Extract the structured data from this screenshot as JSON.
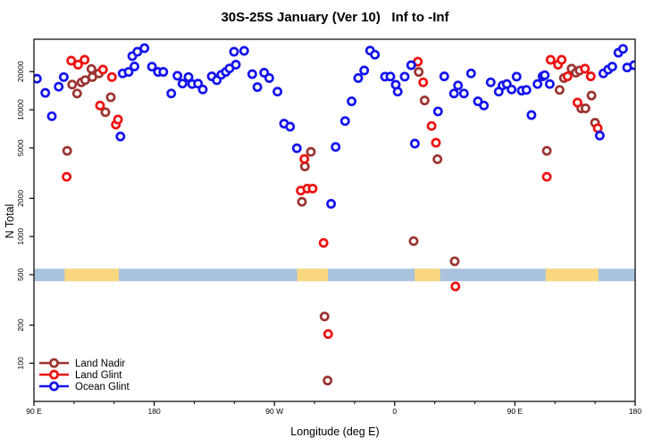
{
  "title": "30S-25S January (Ver 10)   Inf to -Inf",
  "chart_data": {
    "type": "scatter",
    "title": "30S-25S January (Ver 10)   Inf to -Inf",
    "xlabel": "Longitude (deg E)",
    "ylabel": "N Total",
    "y_scale": "log",
    "grid": false,
    "xlim": [
      90,
      540
    ],
    "ylim": [
      50,
      36000
    ],
    "x_axis": {
      "major_ticks": [
        {
          "deg": 90,
          "label": "90 E"
        },
        {
          "deg": 180,
          "label": "180"
        },
        {
          "deg": 270,
          "label": "90 W"
        },
        {
          "deg": 360,
          "label": "0"
        },
        {
          "deg": 450,
          "label": "90 E"
        },
        {
          "deg": 540,
          "label": "180"
        }
      ],
      "minor_ticks_deg": [
        120,
        150,
        210,
        240,
        300,
        330,
        390,
        420,
        480,
        510
      ]
    },
    "y_axis": {
      "ticks": [
        100,
        200,
        500,
        1000,
        2000,
        5000,
        10000,
        20000
      ],
      "tick_labels": [
        "100",
        "200",
        "500",
        "1000",
        "2000",
        "5000",
        "10000",
        "20000"
      ]
    },
    "band": {
      "n_center": 500,
      "n_range": [
        444,
        557
      ],
      "ocean_color": "#A9C2DE",
      "land_color": "#FBD87F",
      "land_segments_deg": [
        [
          113,
          153.5
        ],
        [
          287,
          310
        ],
        [
          375,
          394
        ],
        [
          473,
          512.5
        ]
      ]
    },
    "legend": {
      "position": "bottom-left"
    },
    "series": [
      {
        "name": "Land Nadir",
        "color": "#9B3430",
        "points": [
          [
            118.6,
            15800
          ],
          [
            114.9,
            4740
          ],
          [
            122.3,
            13450
          ],
          [
            125.6,
            16450
          ],
          [
            128.3,
            17150
          ],
          [
            133.0,
            21000
          ],
          [
            133.7,
            18100
          ],
          [
            138.6,
            19350
          ],
          [
            143.5,
            9570
          ],
          [
            147.5,
            12550
          ],
          [
            290.6,
            1880
          ],
          [
            292.8,
            3570
          ],
          [
            297.3,
            4660
          ],
          [
            307.5,
            234
          ],
          [
            309.8,
            73
          ],
          [
            374.2,
            920
          ],
          [
            378.0,
            19900
          ],
          [
            382.4,
            11850
          ],
          [
            392.0,
            4070
          ],
          [
            404.9,
            638
          ],
          [
            473.9,
            4740
          ],
          [
            483.4,
            14350
          ],
          [
            486.7,
            17800
          ],
          [
            492.4,
            21100
          ],
          [
            495.7,
            19600
          ],
          [
            498.4,
            20400
          ],
          [
            499.7,
            10250
          ],
          [
            502.8,
            10250
          ],
          [
            507.3,
            12950
          ],
          [
            510.0,
            7900
          ]
        ]
      },
      {
        "name": "Land Glint",
        "color": "#EE1111",
        "points": [
          [
            114.5,
            2960
          ],
          [
            117.9,
            24400
          ],
          [
            123.0,
            22700
          ],
          [
            127.9,
            24800
          ],
          [
            139.5,
            10800
          ],
          [
            141.7,
            20750
          ],
          [
            148.4,
            18100
          ],
          [
            151.3,
            7630
          ],
          [
            152.9,
            8370
          ],
          [
            289.7,
            2300
          ],
          [
            292.4,
            4090
          ],
          [
            294.6,
            2390
          ],
          [
            298.6,
            2390
          ],
          [
            306.8,
            890
          ],
          [
            310.2,
            170
          ],
          [
            377.3,
            23950
          ],
          [
            381.3,
            16450
          ],
          [
            387.6,
            7450
          ],
          [
            390.9,
            5490
          ],
          [
            405.5,
            404
          ],
          [
            473.9,
            2960
          ],
          [
            476.7,
            24800
          ],
          [
            482.3,
            22700
          ],
          [
            485.0,
            24800
          ],
          [
            489.4,
            18350
          ],
          [
            496.8,
            11400
          ],
          [
            502.4,
            21100
          ],
          [
            506.8,
            18350
          ],
          [
            512.0,
            7150
          ]
        ]
      },
      {
        "name": "Ocean Glint",
        "color": "#1414EE",
        "points": [
          [
            92.2,
            17600
          ],
          [
            98.5,
            13600
          ],
          [
            103.4,
            8890
          ],
          [
            108.5,
            15200
          ],
          [
            112.3,
            18100
          ],
          [
            154.7,
            6150
          ],
          [
            156.4,
            19350
          ],
          [
            160.9,
            19900
          ],
          [
            163.6,
            26500
          ],
          [
            165.2,
            21950
          ],
          [
            167.4,
            28700
          ],
          [
            172.7,
            30600
          ],
          [
            178.3,
            21900
          ],
          [
            182.9,
            19900
          ],
          [
            186.8,
            19900
          ],
          [
            192.8,
            13450
          ],
          [
            197.4,
            18550
          ],
          [
            201.2,
            16100
          ],
          [
            205.7,
            18100
          ],
          [
            208.4,
            15950
          ],
          [
            212.8,
            16100
          ],
          [
            216.4,
            14450
          ],
          [
            223.1,
            18350
          ],
          [
            226.9,
            17100
          ],
          [
            230.2,
            18900
          ],
          [
            233.6,
            19900
          ],
          [
            236.4,
            21200
          ],
          [
            239.8,
            28700
          ],
          [
            241.1,
            22700
          ],
          [
            247.3,
            29150
          ],
          [
            253.4,
            19100
          ],
          [
            257.2,
            15100
          ],
          [
            262.3,
            19600
          ],
          [
            266.1,
            17800
          ],
          [
            272.3,
            13900
          ],
          [
            277.2,
            7770
          ],
          [
            281.7,
            7350
          ],
          [
            286.8,
            4970
          ],
          [
            312.4,
            1810
          ],
          [
            315.8,
            5090
          ],
          [
            322.9,
            8150
          ],
          [
            327.8,
            11650
          ],
          [
            332.7,
            17800
          ],
          [
            337.2,
            20400
          ],
          [
            341.6,
            29300
          ],
          [
            345.2,
            27200
          ],
          [
            352.8,
            18250
          ],
          [
            356.8,
            18300
          ],
          [
            360.8,
            15750
          ],
          [
            362.3,
            13900
          ],
          [
            367.5,
            18250
          ],
          [
            372.4,
            22450
          ],
          [
            375.1,
            5410
          ],
          [
            392.4,
            9700
          ],
          [
            397.1,
            18350
          ],
          [
            404.4,
            13450
          ],
          [
            407.4,
            15550
          ],
          [
            411.8,
            13450
          ],
          [
            417.2,
            19350
          ],
          [
            422.3,
            11650
          ],
          [
            426.8,
            10800
          ],
          [
            431.9,
            16450
          ],
          [
            437.9,
            13900
          ],
          [
            440.8,
            15550
          ],
          [
            443.9,
            15950
          ],
          [
            447.5,
            14450
          ],
          [
            451.3,
            18250
          ],
          [
            455.1,
            14150
          ],
          [
            458.6,
            14350
          ],
          [
            462.4,
            9080
          ],
          [
            466.9,
            15950
          ],
          [
            470.7,
            18350
          ],
          [
            472.3,
            18750
          ],
          [
            476.1,
            15950
          ],
          [
            513.5,
            6250
          ],
          [
            516.2,
            19350
          ],
          [
            519.8,
            20750
          ],
          [
            522.9,
            21900
          ],
          [
            527.4,
            28200
          ],
          [
            530.9,
            30200
          ],
          [
            534.0,
            21550
          ],
          [
            539.2,
            22450
          ]
        ]
      }
    ]
  }
}
